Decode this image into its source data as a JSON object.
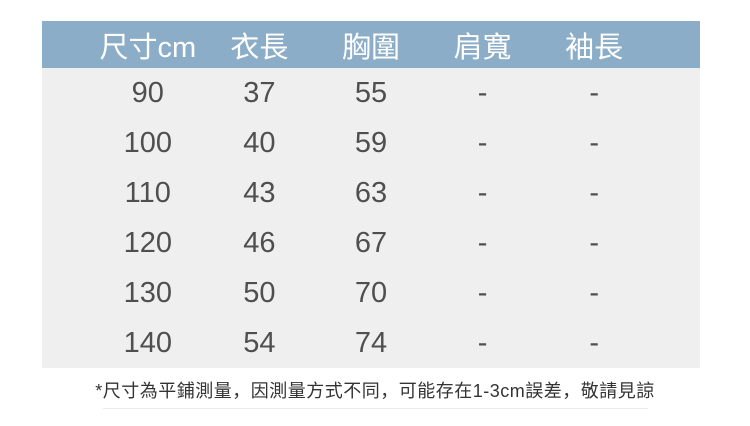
{
  "chart_data": {
    "type": "table",
    "columns": [
      "尺寸cm",
      "衣長",
      "胸圍",
      "肩寬",
      "袖長"
    ],
    "rows": [
      [
        "90",
        "37",
        "55",
        "-",
        "-"
      ],
      [
        "100",
        "40",
        "59",
        "-",
        "-"
      ],
      [
        "110",
        "43",
        "63",
        "-",
        "-"
      ],
      [
        "120",
        "46",
        "67",
        "-",
        "-"
      ],
      [
        "130",
        "50",
        "70",
        "-",
        "-"
      ],
      [
        "140",
        "54",
        "74",
        "-",
        "-"
      ]
    ],
    "note": "*尺寸為平鋪測量，因測量方式不同，可能存在1-3cm誤差，敬請見諒",
    "layout_hints": {
      "header_position": "top",
      "grid": "off",
      "row_separators": "none"
    }
  },
  "colors": {
    "header_bg": "#8badc7",
    "header_text": "#ffffff",
    "body_bg": "#efefef",
    "body_text": "#4f4f4f",
    "note_text": "#333333",
    "page_bg": "#ffffff"
  }
}
